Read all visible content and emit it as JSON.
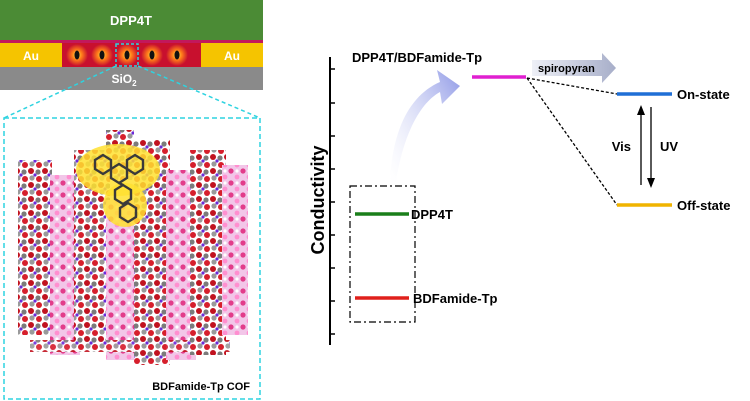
{
  "device": {
    "top_layer": "DPP4T",
    "electrode_left": "Au",
    "electrode_right": "Au",
    "substrate": "SiO",
    "substrate_subscript": "2",
    "colors": {
      "top_layer": "#4b8b35",
      "electrode": "#f5c400",
      "channel": "#c8102e",
      "substrate": "#8a8a8a",
      "magenta_strip": "#c2185b"
    }
  },
  "zoom_panel": {
    "caption": "BDFamide-Tp COF",
    "colors": {
      "frame": "#2ed3e0"
    }
  },
  "energy_diagram": {
    "y_axis_label": "Conductivity",
    "levels": {
      "dpp4t": "DPP4T",
      "bdfamide": "BDFamide-Tp",
      "composite": "DPP4T/BDFamide-Tp",
      "on_state": "On-state",
      "off_state": "Off-state"
    },
    "modifier_arrow_label": "spiropyran",
    "switch_labels": {
      "visible": "Vis",
      "ultraviolet": "UV"
    },
    "colors": {
      "dpp4t": "#1a7f1a",
      "bdfamide": "#e0201b",
      "composite": "#e020d0",
      "on_state": "#1f6fd6",
      "off_state": "#f0b400",
      "curved_arrow": "#9da6e8"
    }
  }
}
